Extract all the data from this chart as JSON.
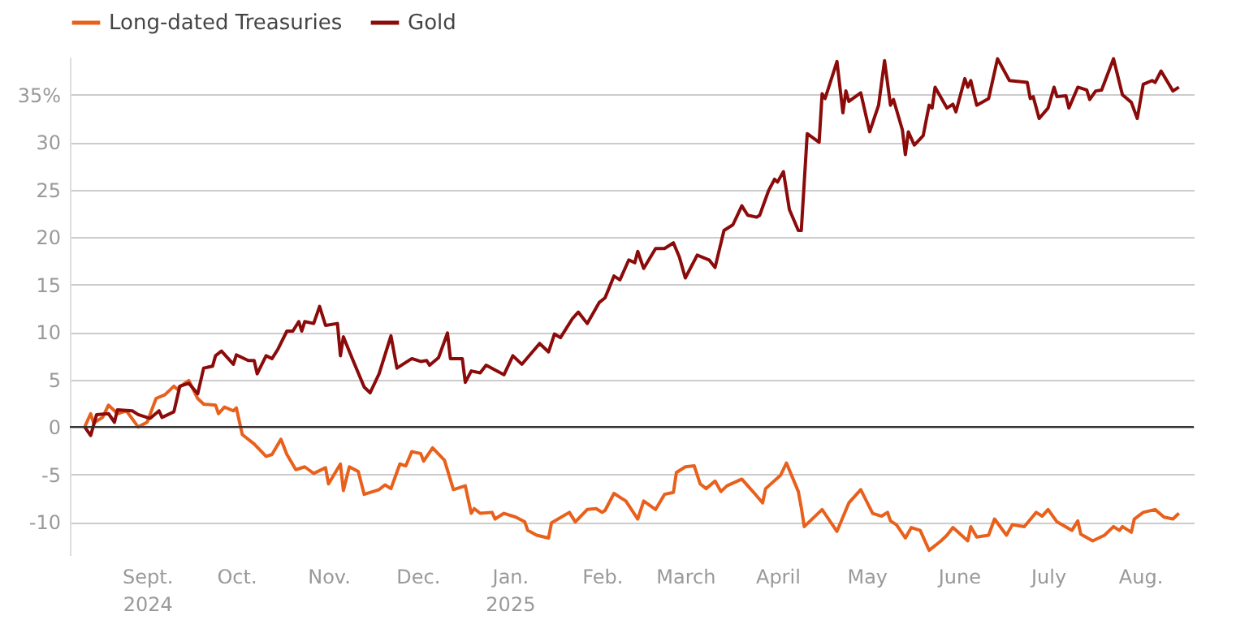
{
  "chart_data": {
    "type": "line",
    "legend": "top left",
    "grid": "y",
    "line_style": "solid",
    "marker": "none",
    "ylim": [
      -13.5,
      39
    ],
    "yticks": [
      -10,
      -5,
      0,
      5,
      10,
      15,
      20,
      25,
      30,
      {
        "value": 35,
        "label": "35%"
      }
    ],
    "xlim": [
      "2024-08-06",
      "2025-08-19"
    ],
    "xticks": [
      {
        "value": "2024-09-01",
        "label": "Sept.\n2024"
      },
      {
        "value": "2024-10-01",
        "label": "Oct."
      },
      {
        "value": "2024-11-01",
        "label": "Nov."
      },
      {
        "value": "2024-12-01",
        "label": "Dec."
      },
      {
        "value": "2025-01-01",
        "label": "Jan.\n2025"
      },
      {
        "value": "2025-02-01",
        "label": "Feb."
      },
      {
        "value": "2025-03-01",
        "label": "March"
      },
      {
        "value": "2025-04-01",
        "label": "April"
      },
      {
        "value": "2025-05-01",
        "label": "May"
      },
      {
        "value": "2025-06-01",
        "label": "June"
      },
      {
        "value": "2025-07-01",
        "label": "July"
      },
      {
        "value": "2025-08-01",
        "label": "Aug."
      }
    ],
    "ref_lines": [
      {
        "axis": "y",
        "value": 0,
        "color": "#333333"
      }
    ],
    "series": [
      {
        "name": "Long-dated Treasuries",
        "color": "#e8601c",
        "x": [
          "2024-08-11",
          "2024-08-13",
          "2024-08-14",
          "2024-08-17",
          "2024-08-19",
          "2024-08-22",
          "2024-08-25",
          "2024-08-29",
          "2024-09-01",
          "2024-09-04",
          "2024-09-07",
          "2024-09-10",
          "2024-09-11",
          "2024-09-15",
          "2024-09-18",
          "2024-09-20",
          "2024-09-24",
          "2024-09-25",
          "2024-09-27",
          "2024-09-30",
          "2024-10-01",
          "2024-10-03",
          "2024-10-07",
          "2024-10-11",
          "2024-10-13",
          "2024-10-16",
          "2024-10-18",
          "2024-10-21",
          "2024-10-24",
          "2024-10-27",
          "2024-10-31",
          "2024-11-01",
          "2024-11-05",
          "2024-11-06",
          "2024-11-08",
          "2024-11-11",
          "2024-11-13",
          "2024-11-18",
          "2024-11-20",
          "2024-11-22",
          "2024-11-25",
          "2024-11-27",
          "2024-11-29",
          "2024-12-02",
          "2024-12-03",
          "2024-12-06",
          "2024-12-10",
          "2024-12-13",
          "2024-12-17",
          "2024-12-19",
          "2024-12-20",
          "2024-12-22",
          "2024-12-26",
          "2024-12-27",
          "2024-12-30",
          "2025-01-03",
          "2025-01-06",
          "2025-01-07",
          "2025-01-10",
          "2025-01-14",
          "2025-01-15",
          "2025-01-21",
          "2025-01-23",
          "2025-01-27",
          "2025-01-30",
          "2025-02-01",
          "2025-02-02",
          "2025-02-05",
          "2025-02-09",
          "2025-02-13",
          "2025-02-15",
          "2025-02-19",
          "2025-02-22",
          "2025-02-25",
          "2025-02-26",
          "2025-03-01",
          "2025-03-04",
          "2025-03-06",
          "2025-03-08",
          "2025-03-11",
          "2025-03-13",
          "2025-03-15",
          "2025-03-20",
          "2025-03-24",
          "2025-03-27",
          "2025-03-28",
          "2025-04-02",
          "2025-04-04",
          "2025-04-08",
          "2025-04-09",
          "2025-04-10",
          "2025-04-16",
          "2025-04-21",
          "2025-04-25",
          "2025-04-29",
          "2025-05-03",
          "2025-05-06",
          "2025-05-08",
          "2025-05-09",
          "2025-05-11",
          "2025-05-14",
          "2025-05-16",
          "2025-05-19",
          "2025-05-22",
          "2025-05-26",
          "2025-05-28",
          "2025-05-30",
          "2025-06-04",
          "2025-06-05",
          "2025-06-07",
          "2025-06-11",
          "2025-06-13",
          "2025-06-17",
          "2025-06-19",
          "2025-06-23",
          "2025-06-27",
          "2025-06-29",
          "2025-07-01",
          "2025-07-04",
          "2025-07-09",
          "2025-07-11",
          "2025-07-12",
          "2025-07-16",
          "2025-07-20",
          "2025-07-23",
          "2025-07-25",
          "2025-07-26",
          "2025-07-29",
          "2025-07-30",
          "2025-08-02",
          "2025-08-06",
          "2025-08-09",
          "2025-08-12",
          "2025-08-14"
        ],
        "values": [
          0,
          1.4,
          0.4,
          1.0,
          2.3,
          1.4,
          1.7,
          0,
          0.5,
          3.0,
          3.4,
          4.3,
          4.0,
          4.9,
          3.0,
          2.4,
          2.3,
          1.4,
          2.1,
          1.7,
          2.0,
          -0.8,
          -1.8,
          -3.1,
          -2.9,
          -1.3,
          -2.9,
          -4.5,
          -4.2,
          -4.9,
          -4.3,
          -6.0,
          -3.9,
          -6.7,
          -4.2,
          -4.7,
          -7.1,
          -6.6,
          -6.1,
          -6.5,
          -3.9,
          -4.1,
          -2.6,
          -2.8,
          -3.6,
          -2.2,
          -3.5,
          -6.6,
          -6.2,
          -9.1,
          -8.6,
          -9.1,
          -9.0,
          -9.7,
          -9.1,
          -9.5,
          -10.0,
          -10.9,
          -11.4,
          -11.7,
          -10.1,
          -9.0,
          -10.0,
          -8.7,
          -8.6,
          -9.0,
          -8.8,
          -7.0,
          -7.8,
          -9.7,
          -7.8,
          -8.7,
          -7.1,
          -6.9,
          -4.8,
          -4.2,
          -4.1,
          -6.0,
          -6.5,
          -5.7,
          -6.8,
          -6.2,
          -5.5,
          -6.9,
          -8.0,
          -6.5,
          -5.1,
          -3.8,
          -6.8,
          -8.5,
          -10.5,
          -8.7,
          -11.0,
          -8.0,
          -6.6,
          -9.1,
          -9.4,
          -9.0,
          -9.9,
          -10.3,
          -11.7,
          -10.6,
          -10.9,
          -13.0,
          -12.0,
          -11.4,
          -10.6,
          -12.0,
          -10.5,
          -11.6,
          -11.4,
          -9.7,
          -11.4,
          -10.3,
          -10.5,
          -9.0,
          -9.4,
          -8.7,
          -10.0,
          -10.9,
          -9.9,
          -11.3,
          -12.0,
          -11.4,
          -10.5,
          -10.9,
          -10.5,
          -11.1,
          -9.7,
          -9.0,
          -8.7,
          -9.5,
          -9.7,
          -9.1
        ]
      },
      {
        "name": "Gold",
        "color": "#8b0a0a",
        "x": [
          "2024-08-11",
          "2024-08-13",
          "2024-08-15",
          "2024-08-19",
          "2024-08-21",
          "2024-08-22",
          "2024-08-27",
          "2024-08-29",
          "2024-09-02",
          "2024-09-05",
          "2024-09-06",
          "2024-09-10",
          "2024-09-12",
          "2024-09-15",
          "2024-09-18",
          "2024-09-20",
          "2024-09-23",
          "2024-09-24",
          "2024-09-26",
          "2024-09-30",
          "2024-10-01",
          "2024-10-05",
          "2024-10-07",
          "2024-10-08",
          "2024-10-11",
          "2024-10-13",
          "2024-10-15",
          "2024-10-18",
          "2024-10-20",
          "2024-10-22",
          "2024-10-23",
          "2024-10-24",
          "2024-10-27",
          "2024-10-29",
          "2024-10-31",
          "2024-11-04",
          "2024-11-05",
          "2024-11-06",
          "2024-11-09",
          "2024-11-13",
          "2024-11-15",
          "2024-11-18",
          "2024-11-22",
          "2024-11-24",
          "2024-11-29",
          "2024-12-02",
          "2024-12-04",
          "2024-12-05",
          "2024-12-08",
          "2024-12-11",
          "2024-12-12",
          "2024-12-16",
          "2024-12-17",
          "2024-12-19",
          "2024-12-22",
          "2024-12-24",
          "2024-12-30",
          "2025-01-02",
          "2025-01-05",
          "2025-01-11",
          "2025-01-14",
          "2025-01-16",
          "2025-01-18",
          "2025-01-22",
          "2025-01-24",
          "2025-01-27",
          "2025-01-31",
          "2025-02-02",
          "2025-02-05",
          "2025-02-07",
          "2025-02-10",
          "2025-02-12",
          "2025-02-13",
          "2025-02-15",
          "2025-02-19",
          "2025-02-22",
          "2025-02-25",
          "2025-02-27",
          "2025-03-01",
          "2025-03-05",
          "2025-03-09",
          "2025-03-11",
          "2025-03-14",
          "2025-03-17",
          "2025-03-20",
          "2025-03-22",
          "2025-03-25",
          "2025-03-26",
          "2025-03-29",
          "2025-03-31",
          "2025-04-01",
          "2025-04-03",
          "2025-04-05",
          "2025-04-08",
          "2025-04-09",
          "2025-04-11",
          "2025-04-15",
          "2025-04-16",
          "2025-04-17",
          "2025-04-21",
          "2025-04-23",
          "2025-04-24",
          "2025-04-25",
          "2025-04-29",
          "2025-05-02",
          "2025-05-05",
          "2025-05-07",
          "2025-05-09",
          "2025-05-10",
          "2025-05-13",
          "2025-05-14",
          "2025-05-15",
          "2025-05-17",
          "2025-05-20",
          "2025-05-22",
          "2025-05-23",
          "2025-05-24",
          "2025-05-28",
          "2025-05-30",
          "2025-05-31",
          "2025-06-03",
          "2025-06-04",
          "2025-06-05",
          "2025-06-07",
          "2025-06-11",
          "2025-06-14",
          "2025-06-18",
          "2025-06-24",
          "2025-06-25",
          "2025-06-26",
          "2025-06-28",
          "2025-07-01",
          "2025-07-03",
          "2025-07-04",
          "2025-07-07",
          "2025-07-08",
          "2025-07-11",
          "2025-07-14",
          "2025-07-15",
          "2025-07-17",
          "2025-07-19",
          "2025-07-23",
          "2025-07-26",
          "2025-07-29",
          "2025-07-31",
          "2025-08-02",
          "2025-08-05",
          "2025-08-06",
          "2025-08-08",
          "2025-08-12",
          "2025-08-14"
        ],
        "values": [
          0,
          -0.9,
          1.3,
          1.4,
          0.5,
          1.8,
          1.7,
          1.3,
          0.9,
          1.7,
          1.0,
          1.6,
          4.3,
          4.6,
          3.5,
          6.2,
          6.4,
          7.5,
          8.0,
          6.6,
          7.6,
          7.0,
          7.0,
          5.6,
          7.5,
          7.2,
          8.2,
          10.1,
          10.1,
          11.1,
          10.1,
          11.1,
          10.9,
          12.7,
          10.7,
          10.9,
          7.5,
          9.5,
          7.2,
          4.2,
          3.6,
          5.6,
          9.6,
          6.2,
          7.2,
          6.9,
          7.0,
          6.5,
          7.3,
          9.9,
          7.2,
          7.2,
          4.7,
          5.9,
          5.7,
          6.5,
          5.5,
          7.5,
          6.6,
          8.8,
          7.9,
          9.8,
          9.4,
          11.4,
          12.1,
          10.9,
          13.1,
          13.6,
          15.9,
          15.5,
          17.6,
          17.3,
          18.5,
          16.7,
          18.8,
          18.8,
          19.4,
          17.9,
          15.7,
          18.1,
          17.6,
          16.8,
          20.7,
          21.3,
          23.3,
          22.3,
          22.1,
          22.3,
          24.9,
          26.1,
          25.8,
          26.9,
          22.9,
          20.7,
          20.7,
          30.9,
          30.0,
          35.1,
          34.6,
          38.5,
          33.1,
          35.4,
          34.3,
          35.2,
          31.1,
          33.9,
          38.6,
          33.9,
          34.5,
          31.3,
          28.7,
          31.1,
          29.7,
          30.7,
          33.9,
          33.6,
          35.8,
          33.6,
          34.0,
          33.2,
          36.7,
          35.8,
          36.5,
          33.9,
          34.6,
          38.8,
          36.5,
          36.3,
          34.6,
          34.8,
          32.5,
          33.6,
          35.8,
          34.8,
          34.9,
          33.6,
          35.8,
          35.5,
          34.5,
          35.4,
          35.5,
          38.8,
          35.0,
          34.2,
          32.5,
          36.1,
          36.5,
          36.3,
          37.5,
          35.4,
          35.8
        ]
      }
    ]
  }
}
